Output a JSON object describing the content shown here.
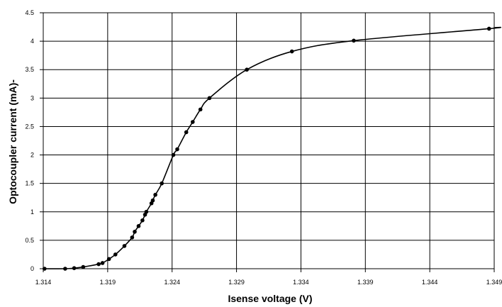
{
  "chart_data": {
    "type": "scatter",
    "xlabel": "Isense voltage (V)",
    "ylabel": "Optocoupler current (mA)-",
    "xlim": [
      1.314,
      1.349
    ],
    "ylim": [
      0,
      4.5
    ],
    "xticks": [
      "1.314",
      "1.319",
      "1.324",
      "1.329",
      "1.334",
      "1.339",
      "1.344",
      "1.349"
    ],
    "yticks": [
      "0",
      "0.5",
      "1",
      "1.5",
      "2",
      "2.5",
      "3",
      "3.5",
      "4",
      "4.5"
    ],
    "grid": true,
    "series": [
      {
        "name": "",
        "color": "#000000",
        "points": [
          [
            1.3141,
            0.0
          ],
          [
            1.3157,
            0.0
          ],
          [
            1.3164,
            0.01
          ],
          [
            1.3171,
            0.03
          ],
          [
            1.3183,
            0.08
          ],
          [
            1.3186,
            0.1
          ],
          [
            1.3191,
            0.17
          ],
          [
            1.3196,
            0.25
          ],
          [
            1.3203,
            0.4
          ],
          [
            1.3209,
            0.55
          ],
          [
            1.3211,
            0.65
          ],
          [
            1.3214,
            0.75
          ],
          [
            1.3217,
            0.85
          ],
          [
            1.3219,
            0.95
          ],
          [
            1.322,
            1.0
          ],
          [
            1.3224,
            1.15
          ],
          [
            1.3225,
            1.2
          ],
          [
            1.3227,
            1.3
          ],
          [
            1.3232,
            1.5
          ],
          [
            1.3241,
            2.0
          ],
          [
            1.3244,
            2.1
          ],
          [
            1.3251,
            2.4
          ],
          [
            1.3256,
            2.58
          ],
          [
            1.3262,
            2.8
          ],
          [
            1.3269,
            3.0
          ],
          [
            1.3298,
            3.5
          ],
          [
            1.3333,
            3.82
          ],
          [
            1.3381,
            4.01
          ],
          [
            1.3486,
            4.22
          ]
        ]
      }
    ]
  }
}
